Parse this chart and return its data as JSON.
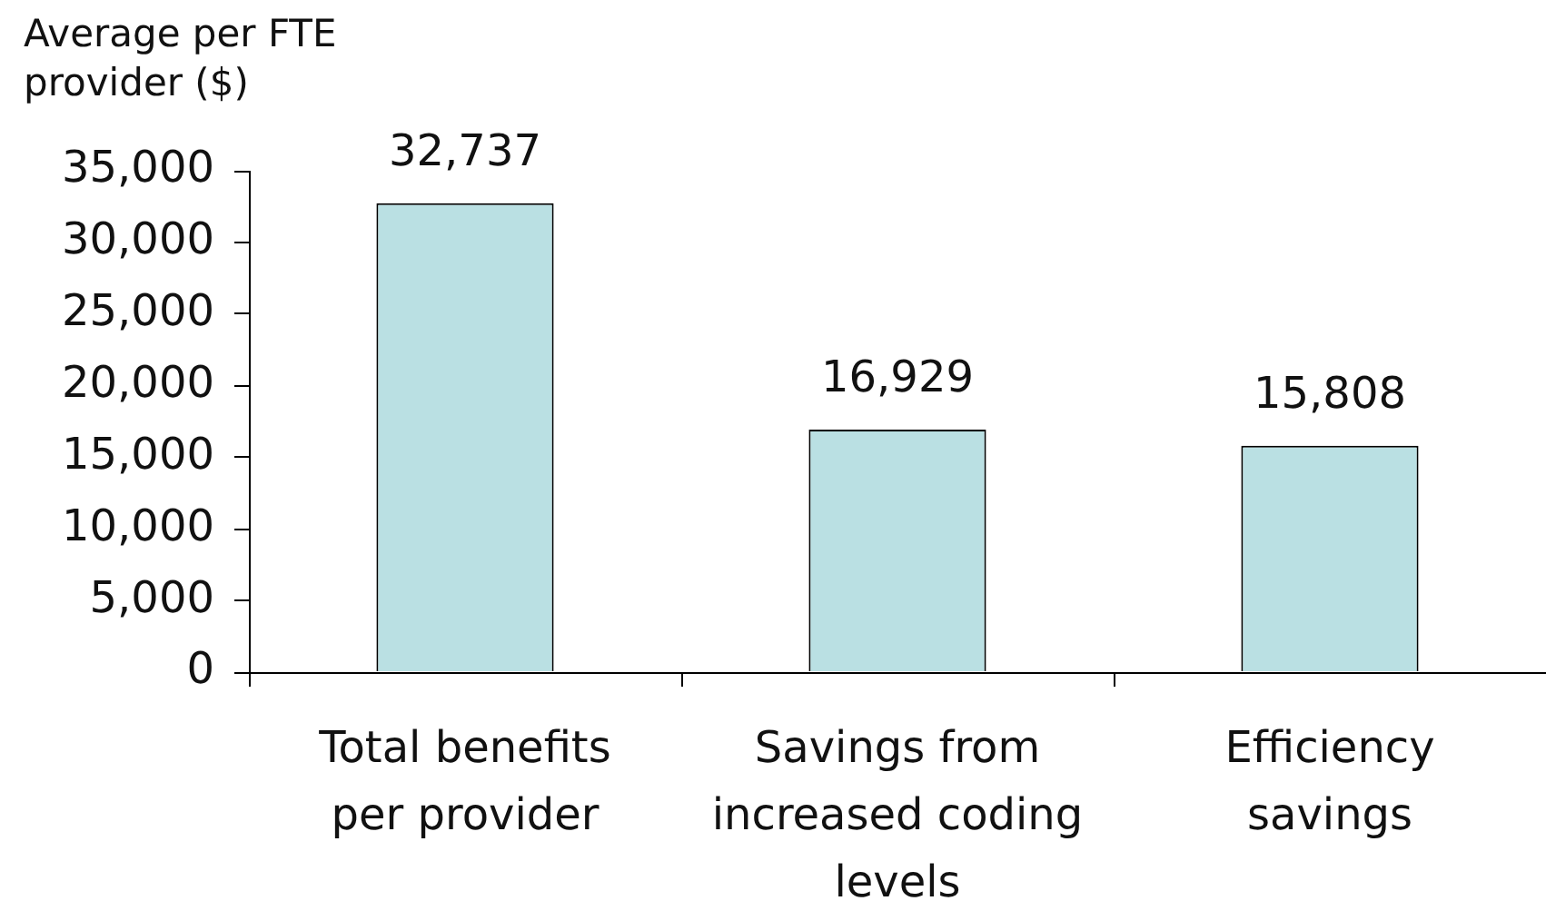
{
  "chart_data": {
    "type": "bar",
    "ylabel": "Average per FTE provider ($)",
    "categories": [
      "Total benefits per provider",
      "Savings from increased coding levels",
      "Efficiency savings"
    ],
    "values": [
      32737,
      16929,
      15808
    ],
    "color": "#bae0e3",
    "value_labels": [
      "32,737",
      "16,929",
      "15,808"
    ],
    "ylim": [
      0,
      35000
    ],
    "yticks": [
      0,
      {
        "value": 5000,
        "label": "5,000"
      },
      {
        "value": 10000,
        "label": "10,000"
      },
      {
        "value": 15000,
        "label": "15,000"
      },
      {
        "value": 20000,
        "label": "20,000"
      },
      {
        "value": 25000,
        "label": "25,000"
      },
      {
        "value": 30000,
        "label": "30,000"
      },
      {
        "value": 35000,
        "label": "35,000"
      }
    ],
    "grid": false,
    "legend": false
  }
}
